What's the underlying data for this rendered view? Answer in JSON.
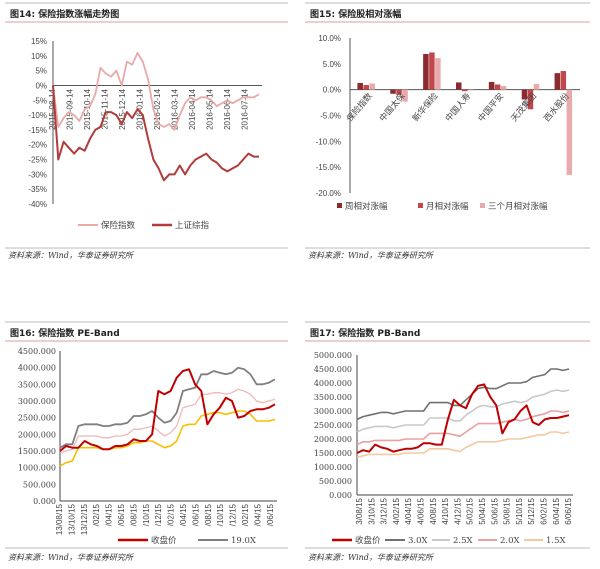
{
  "fig14": {
    "title": "图14:   保险指数涨幅走势图",
    "source": "资料来源：Wind，华泰证券研究所",
    "chart_data": {
      "type": "line",
      "title": "保险指数涨幅走势图",
      "ylim": [
        -40,
        15
      ],
      "yticks": [
        "15%",
        "10%",
        "5%",
        "0%",
        "-5%",
        "-10%",
        "-15%",
        "-20%",
        "-25%",
        "-30%",
        "-35%",
        "-40%"
      ],
      "ytick_values": [
        15,
        10,
        5,
        0,
        -5,
        -10,
        -15,
        -20,
        -25,
        -30,
        -35,
        -40
      ],
      "xticks": [
        "2015-08-14",
        "2015-09-14",
        "2015-10-14",
        "2015-11-14",
        "2015-12-14",
        "2016-01-14",
        "2016-02-14",
        "2016-03-14",
        "2016-04-14",
        "2016-05-14",
        "2016-06-14",
        "2016-07-14"
      ],
      "legend_position": "bottom",
      "series": [
        {
          "name": "保险指数",
          "color": "#e8a9a9",
          "values": [
            0,
            -14,
            -11,
            -9,
            -10,
            -12,
            -8,
            -7,
            -3,
            6,
            4,
            3,
            5,
            0,
            8,
            7,
            11,
            8,
            2,
            -8,
            -13,
            -14,
            -13,
            -15,
            -10,
            -6,
            -4,
            -5,
            -4,
            -4,
            -5,
            -7,
            -6,
            -5,
            -6,
            -5,
            -4,
            -4,
            -4,
            -3
          ]
        },
        {
          "name": "上证综指",
          "color": "#b23b3b",
          "values": [
            0,
            -25,
            -19,
            -21,
            -23,
            -21,
            -22,
            -18,
            -15,
            -14,
            -9,
            -9,
            -10,
            -13,
            -9,
            -11,
            -8,
            -10,
            -18,
            -25,
            -28,
            -32,
            -30,
            -30,
            -27,
            -30,
            -27,
            -25,
            -24,
            -23,
            -25,
            -26,
            -28,
            -29,
            -28,
            -27,
            -25,
            -23,
            -24,
            -24
          ]
        }
      ]
    }
  },
  "fig15": {
    "title": "图15:   保险股相对涨幅",
    "source": "资料来源：Wind，华泰证券研究所",
    "chart_data": {
      "type": "bar",
      "title": "保险股相对涨幅",
      "ylim": [
        -20,
        10
      ],
      "yticks": [
        "10.0%",
        "5.0%",
        "0.0%",
        "-5.0%",
        "-10.0%",
        "-15.0%",
        "-20.0%"
      ],
      "ytick_values": [
        10,
        5,
        0,
        -5,
        -10,
        -15,
        -20
      ],
      "categories": [
        "保险指数",
        "中国太保",
        "新华保险",
        "中国人寿",
        "中国平安",
        "天茂集团",
        "西水股份"
      ],
      "legend_position": "bottom",
      "series": [
        {
          "name": "周相对涨幅",
          "color": "#8b2b30",
          "values": [
            1.3,
            -0.8,
            6.9,
            1.4,
            1.5,
            -1.9,
            3.2
          ]
        },
        {
          "name": "月相对涨幅",
          "color": "#c2474b",
          "values": [
            0.9,
            -1.0,
            7.2,
            -0.3,
            1.0,
            -3.8,
            3.6
          ]
        },
        {
          "name": "三个月相对涨幅",
          "color": "#e9aaad",
          "values": [
            1.2,
            -2.3,
            6.1,
            0.0,
            0.7,
            1.1,
            -16.5
          ]
        }
      ]
    }
  },
  "fig16": {
    "title": "图16:   保险指数 PE-Band",
    "source": "资料来源：Wind，华泰证券研究所",
    "chart_data": {
      "type": "line",
      "title": "保险指数 PE-Band",
      "ylim": [
        0,
        4500
      ],
      "yticks": [
        "4500.000",
        "4000.000",
        "3500.000",
        "3000.000",
        "2500.000",
        "2000.000",
        "1500.000",
        "1000.000",
        "500.000",
        "0.000"
      ],
      "ytick_values": [
        4500,
        4000,
        3500,
        3000,
        2500,
        2000,
        1500,
        1000,
        500,
        0
      ],
      "xticks": [
        "13/08/15",
        "13/10/15",
        "13/12/15",
        "/02/15",
        "/04/15",
        "/06/15",
        "/08/15",
        "/10/15",
        "/12/15",
        "/02/15",
        "/04/15",
        "/06/15",
        "/08/15",
        "/10/15",
        "/12/15",
        "/02/15",
        "/04/15",
        "/06/15"
      ],
      "legend_position": "bottom",
      "series": [
        {
          "name": "",
          "color": "#f5c000",
          "values": [
            1050,
            1150,
            1200,
            1600,
            1600,
            1600,
            1600,
            1550,
            1550,
            1600,
            1600,
            1650,
            1750,
            1750,
            1800,
            1800,
            1700,
            1600,
            1650,
            1800,
            2250,
            2300,
            2300,
            2550,
            2600,
            2650,
            2650,
            2600,
            2650,
            2700,
            2700,
            2600,
            2400,
            2400,
            2400,
            2450
          ]
        },
        {
          "name": "",
          "color": "#f0b9b9",
          "values": [
            1450,
            1500,
            1550,
            1950,
            1950,
            1950,
            1950,
            1900,
            1900,
            1950,
            1950,
            2000,
            2150,
            2150,
            2200,
            2250,
            2100,
            1950,
            2050,
            2250,
            2800,
            2850,
            2900,
            3200,
            3200,
            3250,
            3250,
            3200,
            3250,
            3350,
            3300,
            3200,
            3000,
            2950,
            3000,
            3050
          ]
        },
        {
          "name": "19.0X",
          "color": "#7f7f7f",
          "values": [
            1600,
            1700,
            1700,
            2250,
            2300,
            2300,
            2300,
            2250,
            2250,
            2300,
            2300,
            2350,
            2550,
            2550,
            2600,
            2700,
            2500,
            2350,
            2400,
            2650,
            3300,
            3350,
            3400,
            3800,
            3800,
            3900,
            3850,
            3800,
            3850,
            4000,
            3950,
            3800,
            3500,
            3500,
            3550,
            3650
          ]
        },
        {
          "name": "收盘价",
          "color": "#c00000",
          "values": [
            1500,
            1650,
            1600,
            1600,
            1800,
            1700,
            1650,
            1550,
            1550,
            1650,
            1650,
            1700,
            1850,
            1800,
            1800,
            2000,
            3300,
            3200,
            3300,
            3700,
            3900,
            3950,
            3500,
            3300,
            2300,
            2600,
            2800,
            3100,
            3000,
            2500,
            2550,
            2700,
            2750,
            2750,
            2800,
            2900
          ]
        }
      ]
    }
  },
  "fig17": {
    "title": "图17:   保险指数 PB-Band",
    "source": "资料来源：Wind，华泰证券研究所",
    "chart_data": {
      "type": "line",
      "title": "保险指数 PB-Band",
      "ylim": [
        0,
        5000
      ],
      "yticks": [
        "5000.000",
        "4500.000",
        "4000.000",
        "3500.000",
        "3000.000",
        "2500.000",
        "2000.000",
        "1500.000",
        "1000.000",
        "500.000",
        "0.000"
      ],
      "ytick_values": [
        5000,
        4500,
        4000,
        3500,
        3000,
        2500,
        2000,
        1500,
        1000,
        500,
        0
      ],
      "xticks": [
        "3/08/15",
        "3/10/15",
        "3/12/15",
        "4/02/15",
        "4/04/15",
        "4/06/15",
        "4/08/15",
        "4/10/15",
        "4/12/15",
        "5/02/15",
        "5/04/15",
        "5/06/15",
        "5/08/15",
        "5/10/15",
        "5/12/15",
        "6/02/15",
        "6/04/15",
        "6/06/15"
      ],
      "legend_position": "bottom",
      "series": [
        {
          "name": "收盘价",
          "color": "#c00000",
          "values": [
            1500,
            1600,
            1550,
            1800,
            1700,
            1650,
            1550,
            1600,
            1650,
            1650,
            1700,
            1850,
            1850,
            1800,
            1800,
            2700,
            3400,
            3200,
            3100,
            3600,
            3900,
            3950,
            3500,
            3200,
            2200,
            2600,
            2700,
            3000,
            3200,
            2600,
            2500,
            2700,
            2750,
            2750,
            2800,
            2850
          ]
        },
        {
          "name": "3.0X",
          "color": "#707070",
          "values": [
            2700,
            2800,
            2850,
            2900,
            2950,
            2950,
            2900,
            2950,
            3000,
            3000,
            3000,
            3000,
            3300,
            3300,
            3300,
            3300,
            3200,
            3200,
            3400,
            3600,
            3800,
            3850,
            3800,
            3800,
            3900,
            4000,
            4000,
            4000,
            4050,
            4200,
            4250,
            4300,
            4500,
            4500,
            4450,
            4500
          ]
        },
        {
          "name": "2.5X",
          "color": "#c8c8c8",
          "values": [
            2250,
            2350,
            2400,
            2450,
            2450,
            2450,
            2400,
            2450,
            2500,
            2500,
            2500,
            2500,
            2750,
            2750,
            2750,
            2750,
            2650,
            2650,
            2850,
            3000,
            3150,
            3200,
            3150,
            3150,
            3250,
            3300,
            3350,
            3300,
            3350,
            3500,
            3550,
            3600,
            3700,
            3750,
            3700,
            3750
          ]
        },
        {
          "name": "2.0X",
          "color": "#e8a0a0",
          "values": [
            1800,
            1900,
            1900,
            1950,
            1950,
            1950,
            1950,
            1950,
            2000,
            2000,
            2000,
            2000,
            2200,
            2200,
            2200,
            2200,
            2150,
            2100,
            2250,
            2400,
            2550,
            2550,
            2550,
            2550,
            2600,
            2650,
            2700,
            2650,
            2700,
            2800,
            2850,
            2900,
            3000,
            3000,
            2950,
            3000
          ]
        },
        {
          "name": "1.5X",
          "color": "#f5c8a0",
          "values": [
            1350,
            1400,
            1450,
            1450,
            1450,
            1450,
            1450,
            1450,
            1500,
            1500,
            1500,
            1500,
            1650,
            1650,
            1650,
            1650,
            1600,
            1550,
            1700,
            1800,
            1900,
            1900,
            1900,
            1900,
            1950,
            2000,
            2000,
            2000,
            2050,
            2100,
            2150,
            2150,
            2250,
            2250,
            2200,
            2250
          ]
        }
      ]
    }
  }
}
